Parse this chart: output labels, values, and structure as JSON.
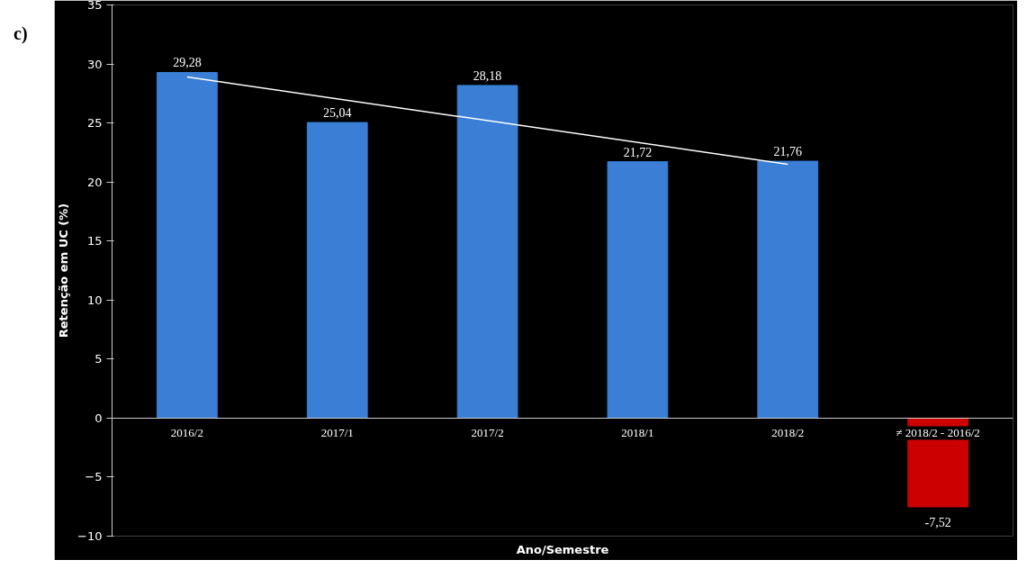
{
  "chart_data": {
    "type": "bar",
    "xlabel": "Ano/Semestre",
    "ylabel": "Retenção em UC (%)",
    "annotations": [
      "c)"
    ],
    "categories": [
      "2016/2",
      "2017/1",
      "2017/2",
      "2018/1",
      "2018/2",
      "≠ 2018/2 - 2016/2"
    ],
    "series": [
      {
        "values": [
          29.28,
          25.04,
          28.18,
          21.72,
          21.76,
          -7.52
        ],
        "colors": [
          "#3a7fd5",
          "#3a7fd5",
          "#3a7fd5",
          "#3a7fd5",
          "#3a7fd5",
          "#cc0000"
        ],
        "value_labels": [
          "29,28",
          "25,04",
          "28,18",
          "21,72",
          "21,76",
          "-7,52"
        ]
      },
      {
        "type": "line",
        "x": [
          "2016/2",
          "2018/2"
        ],
        "values": [
          28.9,
          21.5
        ],
        "color": "#ffffff"
      }
    ],
    "ylim": [
      -10,
      35
    ],
    "yticks": [
      -10,
      -5,
      0,
      5,
      10,
      15,
      20,
      25,
      30,
      35
    ],
    "grid": false
  }
}
